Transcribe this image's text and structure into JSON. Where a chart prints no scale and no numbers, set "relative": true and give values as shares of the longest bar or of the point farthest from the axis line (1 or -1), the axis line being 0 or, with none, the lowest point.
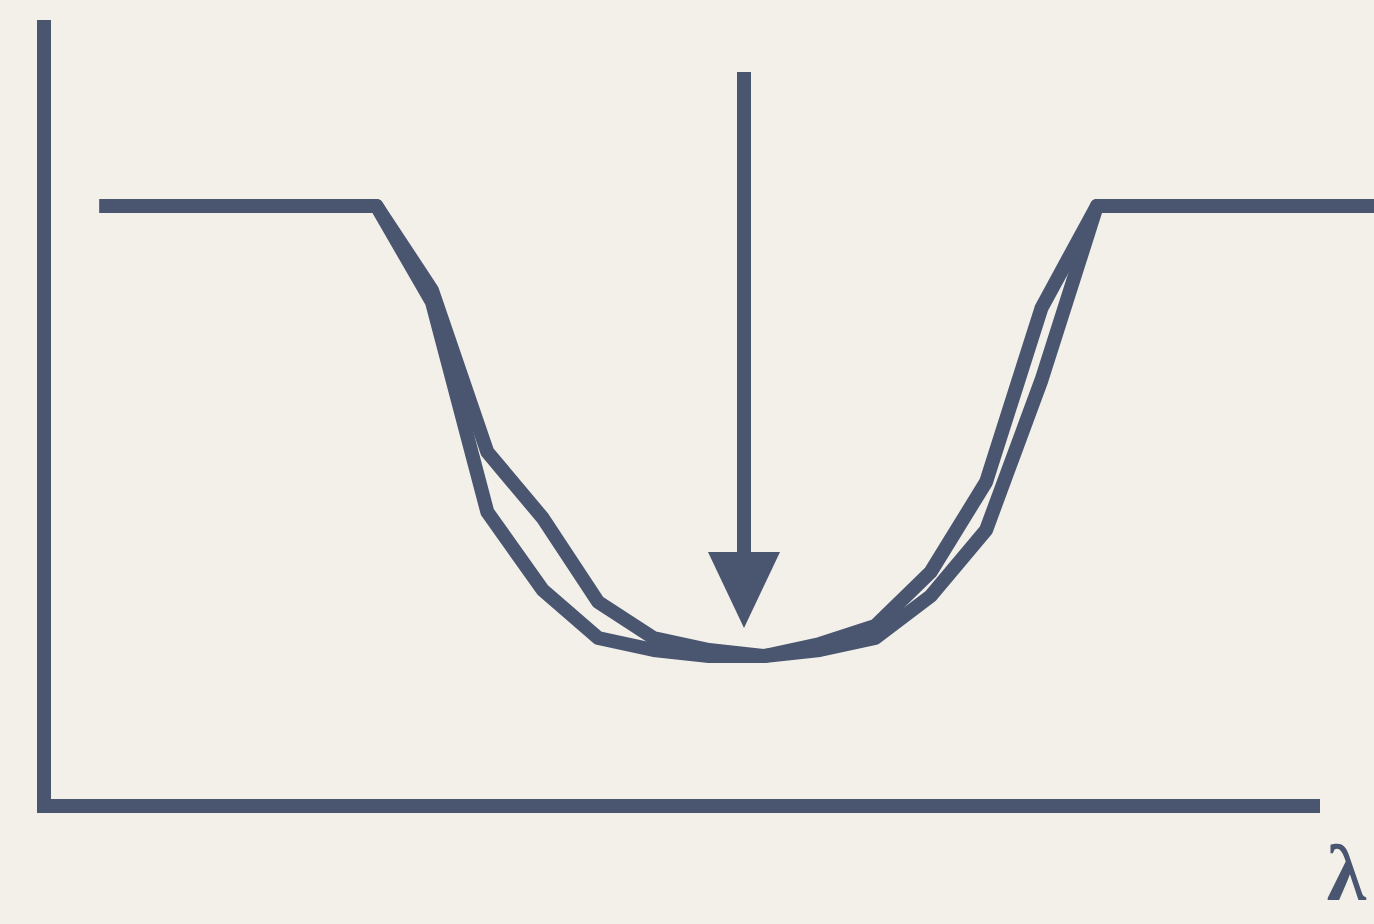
{
  "chart_data": {
    "type": "line",
    "relative": true,
    "xlabel": "λ",
    "legend": false,
    "marker": "none",
    "categories": [
      null,
      null,
      null,
      null,
      null,
      null,
      null,
      null,
      null,
      null,
      null,
      null,
      null,
      null,
      null,
      null,
      null,
      null,
      null,
      null,
      null,
      null,
      null,
      null,
      null
    ],
    "series": [
      {
        "color": "#4a5670",
        "values": [
          null,
          1,
          1,
          1,
          1,
          1,
          1,
          0.84,
          0.49,
          0.36,
          0.28,
          0.26,
          0.25,
          0.25,
          0.26,
          0.28,
          0.35,
          0.46,
          0.71,
          1,
          1,
          1,
          1,
          1,
          1
        ]
      },
      {
        "color": "#4a5670",
        "values": [
          null,
          1,
          1,
          1,
          1,
          1,
          1,
          0.86,
          0.59,
          0.48,
          0.34,
          0.28,
          0.26,
          0.25,
          0.27,
          0.3,
          0.39,
          0.54,
          0.83,
          1,
          1,
          1,
          1,
          1,
          1
        ]
      }
    ]
  }
}
